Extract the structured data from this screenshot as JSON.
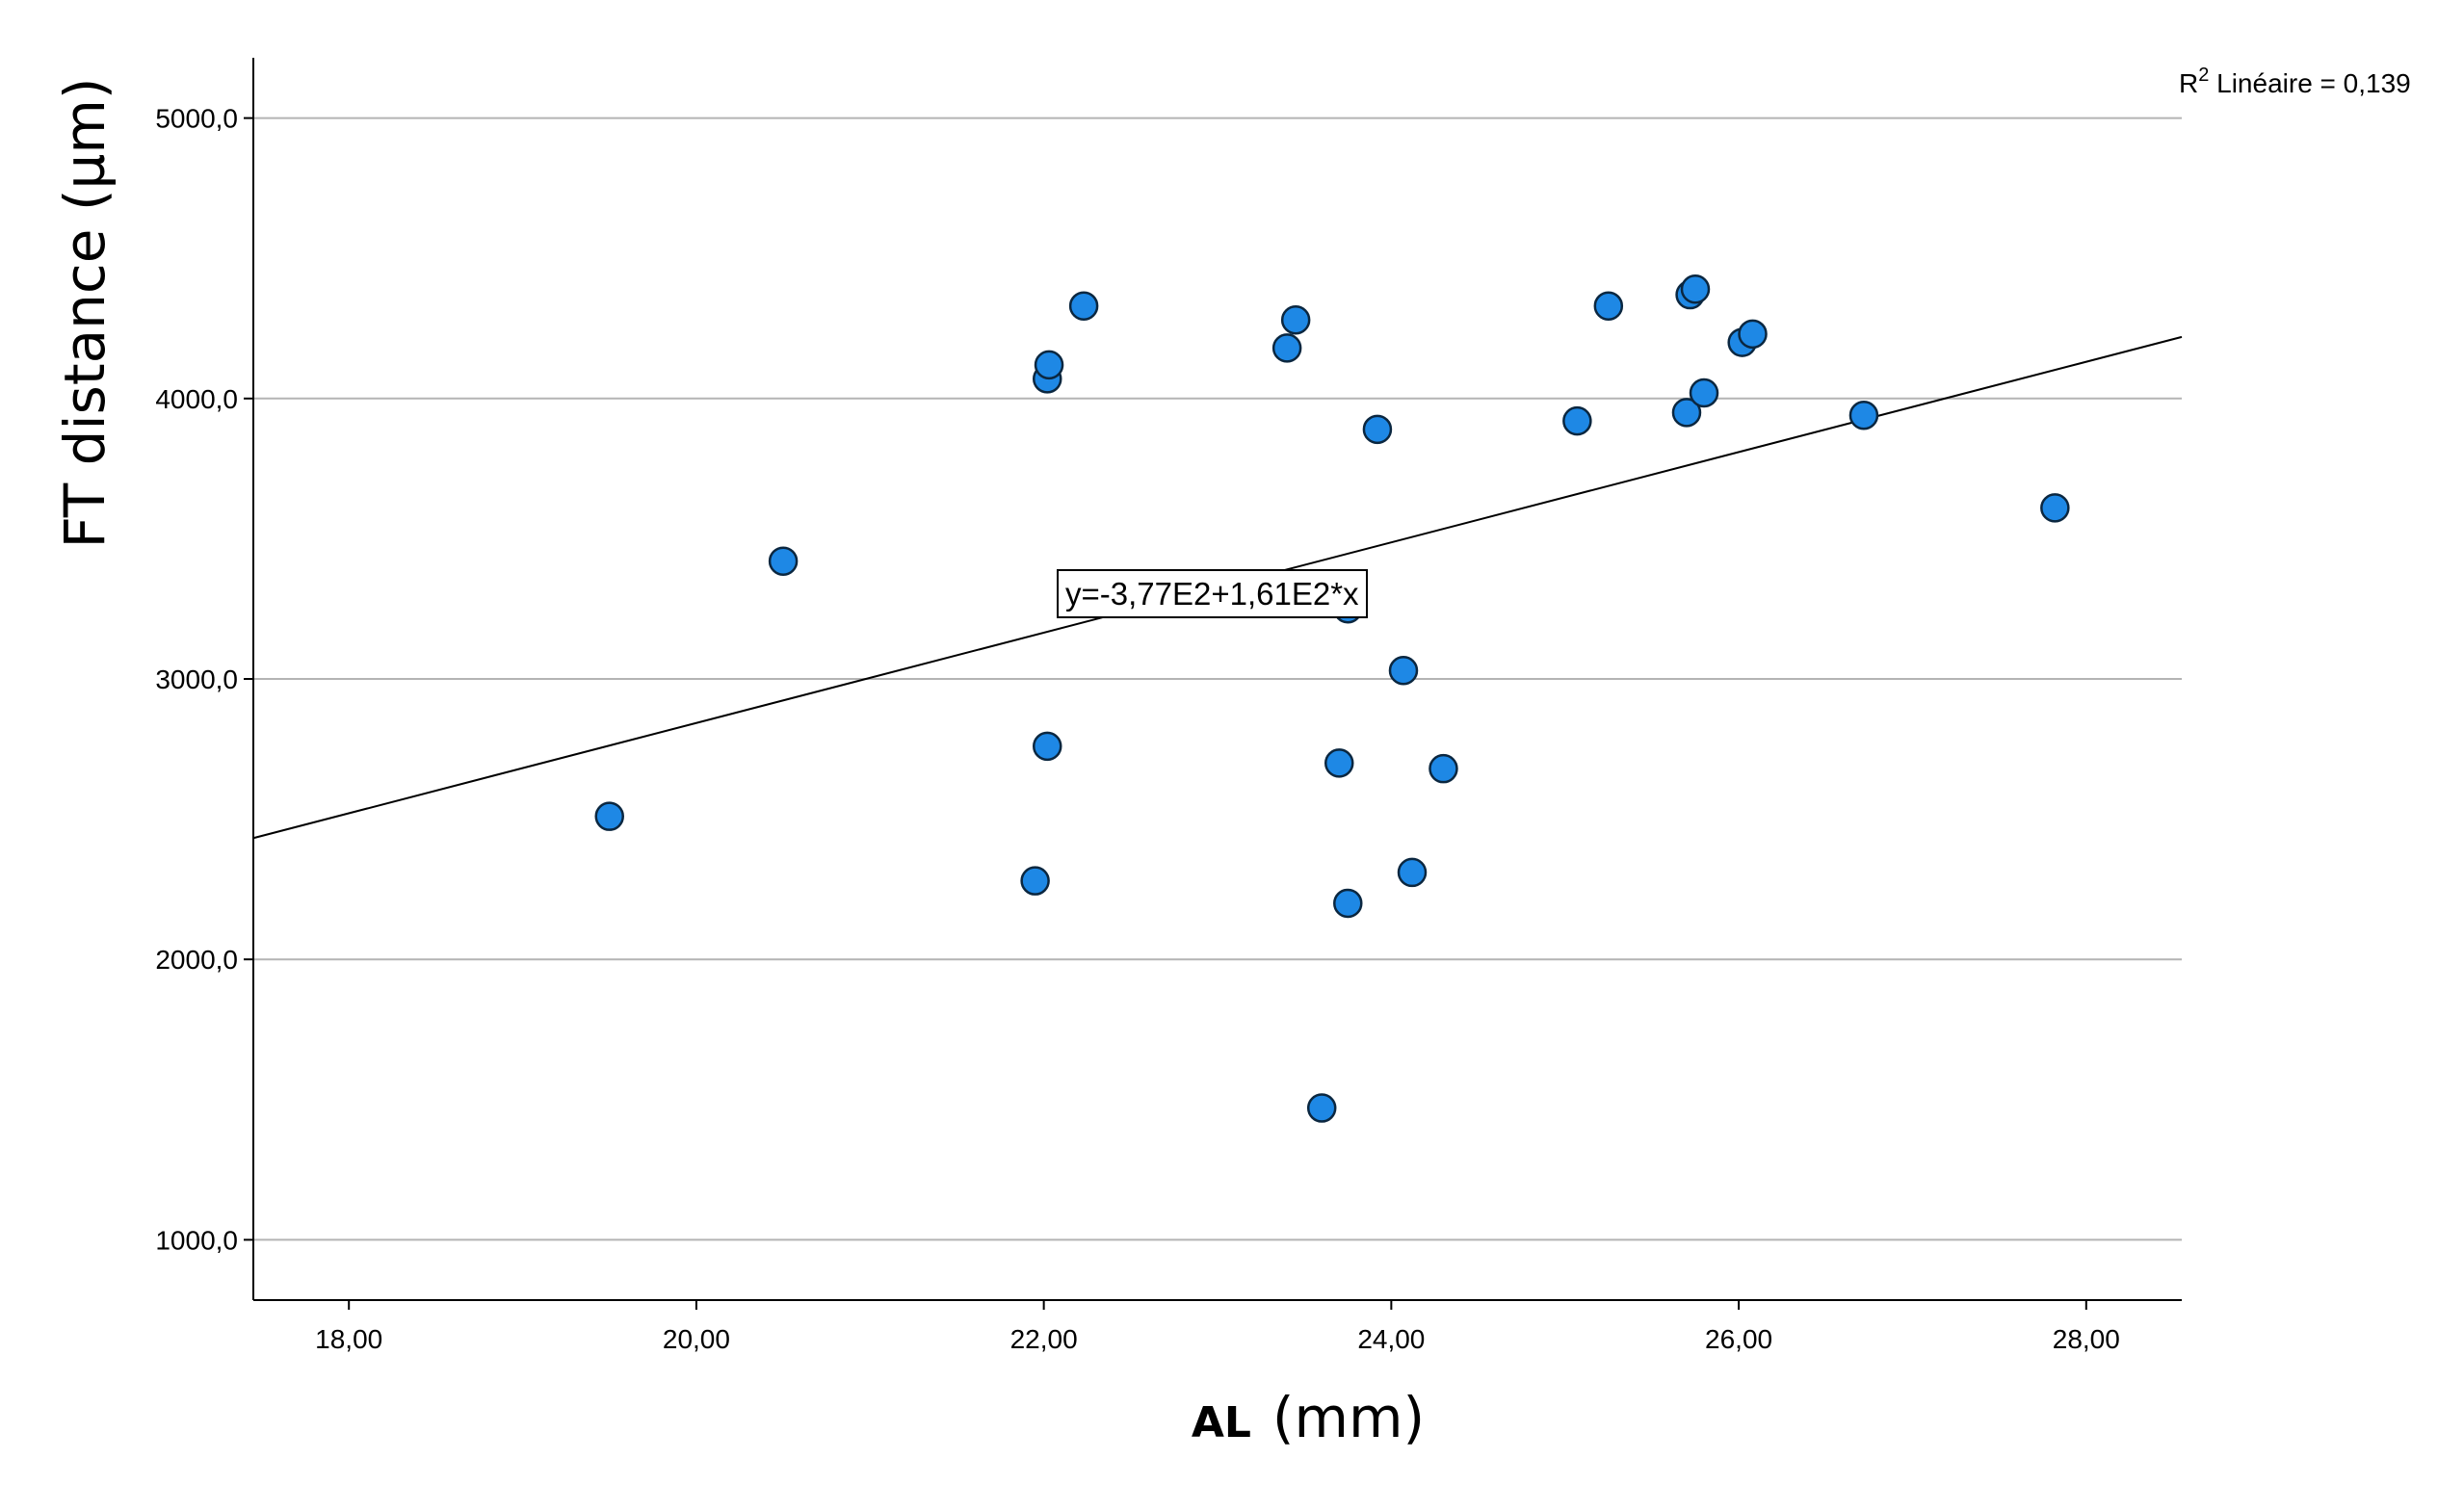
{
  "chart_data": {
    "type": "scatter",
    "xlabel_prefix": "AL",
    "xlabel_unit": "(mm)",
    "ylabel": "FT distance (µm)",
    "xlim": [
      17.45,
      28.55
    ],
    "ylim": [
      785,
      5215
    ],
    "x_ticks": [
      18,
      20,
      22,
      24,
      26,
      28
    ],
    "x_tick_labels": [
      "18,00",
      "20,00",
      "22,00",
      "24,00",
      "26,00",
      "28,00"
    ],
    "y_ticks": [
      1000,
      2000,
      3000,
      4000,
      5000
    ],
    "y_tick_labels": [
      "1000,0",
      "2000,0",
      "3000,0",
      "4000,0",
      "5000,0"
    ],
    "grid": "horizontal",
    "fit_line": {
      "intercept": -377,
      "slope": 161
    },
    "equation_label": "y=-3,77E2+1,61E2*x",
    "r2_label": {
      "main": "R",
      "sup": "2",
      "rest": " Linéaire = 0,139"
    },
    "point_color": "#1e88e5",
    "points": [
      {
        "x": 19.5,
        "y": 2510
      },
      {
        "x": 20.5,
        "y": 3420
      },
      {
        "x": 21.95,
        "y": 2280
      },
      {
        "x": 22.02,
        "y": 2760
      },
      {
        "x": 22.02,
        "y": 4070
      },
      {
        "x": 22.03,
        "y": 4120
      },
      {
        "x": 22.23,
        "y": 4330
      },
      {
        "x": 23.4,
        "y": 4180
      },
      {
        "x": 23.45,
        "y": 4280
      },
      {
        "x": 23.6,
        "y": 1470
      },
      {
        "x": 23.7,
        "y": 2700
      },
      {
        "x": 23.75,
        "y": 2200
      },
      {
        "x": 23.75,
        "y": 3250
      },
      {
        "x": 23.92,
        "y": 3890
      },
      {
        "x": 24.07,
        "y": 3030
      },
      {
        "x": 24.12,
        "y": 2310
      },
      {
        "x": 24.3,
        "y": 2680
      },
      {
        "x": 25.07,
        "y": 3920
      },
      {
        "x": 25.25,
        "y": 4330
      },
      {
        "x": 25.7,
        "y": 3950
      },
      {
        "x": 25.72,
        "y": 4370
      },
      {
        "x": 25.75,
        "y": 4390
      },
      {
        "x": 25.8,
        "y": 4020
      },
      {
        "x": 26.02,
        "y": 4200
      },
      {
        "x": 26.08,
        "y": 4230
      },
      {
        "x": 26.72,
        "y": 3940
      },
      {
        "x": 27.82,
        "y": 3610
      }
    ]
  }
}
